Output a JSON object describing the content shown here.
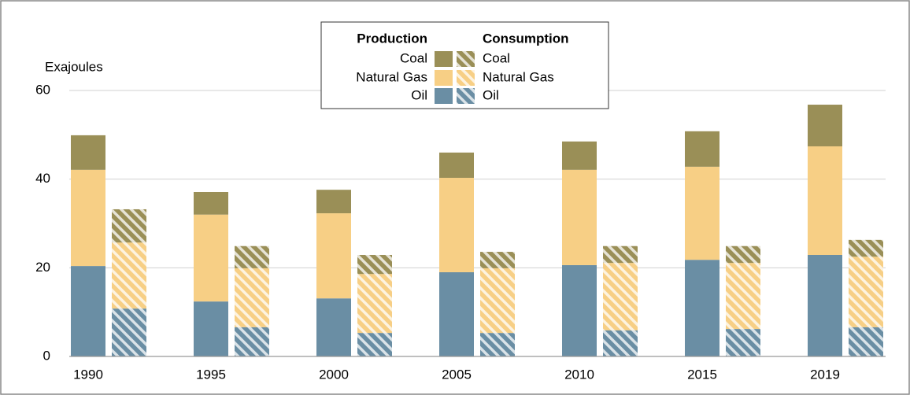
{
  "chart_data": {
    "type": "grouped-stacked-bar",
    "y_label": "Exajoules",
    "categories": [
      "1990",
      "1995",
      "2000",
      "2005",
      "2010",
      "2015",
      "2019"
    ],
    "ylim": [
      0,
      60
    ],
    "yticks": [
      0,
      20,
      40,
      60
    ],
    "grid": true,
    "groups": [
      {
        "name": "Production",
        "pattern": "solid",
        "series": [
          {
            "name": "Oil",
            "color": "#6a8ea4",
            "values": [
              20.4,
              12.4,
              13.1,
              19.0,
              20.6,
              21.8,
              22.9
            ]
          },
          {
            "name": "Natural Gas",
            "color": "#f7cf85",
            "values": [
              21.7,
              19.6,
              19.2,
              21.3,
              21.5,
              21.0,
              24.5
            ]
          },
          {
            "name": "Coal",
            "color": "#9a8f57",
            "values": [
              7.8,
              5.1,
              5.3,
              5.7,
              6.4,
              8.0,
              9.4
            ]
          }
        ]
      },
      {
        "name": "Consumption",
        "pattern": "hatch",
        "series": [
          {
            "name": "Oil",
            "color": "#6a8ea4",
            "values": [
              10.8,
              6.6,
              5.3,
              5.3,
              5.9,
              6.2,
              6.6
            ]
          },
          {
            "name": "Natural Gas",
            "color": "#f7cf85",
            "values": [
              14.9,
              13.3,
              13.3,
              14.6,
              15.2,
              14.9,
              15.9
            ]
          },
          {
            "name": "Coal",
            "color": "#9a8f57",
            "values": [
              7.5,
              5.0,
              4.3,
              3.7,
              3.8,
              3.8,
              3.8
            ]
          }
        ]
      }
    ]
  }
}
